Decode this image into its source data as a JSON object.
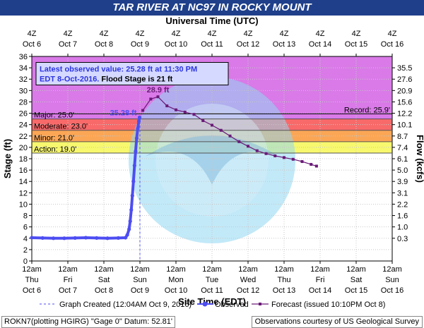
{
  "title": "TAR RIVER AT NC97 IN ROCKY MOUNT",
  "footer": {
    "left": "ROKN7(plotting HGIRG) \"Gage 0\" Datum: 52.81'",
    "right": "Observations courtesy of US Geological Survey"
  },
  "chart_data": {
    "type": "line",
    "title": "TAR RIVER AT NC97 IN ROCKY MOUNT",
    "top_axis_title": "Universal Time (UTC)",
    "bottom_axis_title": "Site Time (EDT)",
    "ylabel_left": "Stage (ft)",
    "ylabel_right": "Flow (kcfs)",
    "ylim": [
      0,
      36
    ],
    "xlim_days": [
      0,
      10
    ],
    "y_ticks": [
      0,
      2,
      4,
      6,
      8,
      10,
      12,
      14,
      16,
      18,
      20,
      22,
      24,
      26,
      28,
      30,
      32,
      34,
      36
    ],
    "right_ticks": [
      {
        "stage": 4,
        "label": "0.3"
      },
      {
        "stage": 6,
        "label": "1.0"
      },
      {
        "stage": 8,
        "label": "1.6"
      },
      {
        "stage": 10,
        "label": "2.2"
      },
      {
        "stage": 12,
        "label": "3.1"
      },
      {
        "stage": 14,
        "label": "3.9"
      },
      {
        "stage": 16,
        "label": "5.0"
      },
      {
        "stage": 18,
        "label": "6.1"
      },
      {
        "stage": 20,
        "label": "7.4"
      },
      {
        "stage": 22,
        "label": "8.7"
      },
      {
        "stage": 24,
        "label": "10.1"
      },
      {
        "stage": 26,
        "label": "12.2"
      },
      {
        "stage": 28,
        "label": "15.6"
      },
      {
        "stage": 30,
        "label": "20.9"
      },
      {
        "stage": 32,
        "label": "27.6"
      },
      {
        "stage": 34,
        "label": "35.5"
      }
    ],
    "top_ticks": [
      {
        "l1": "4Z",
        "l2": "Oct 6"
      },
      {
        "l1": "4Z",
        "l2": "Oct 7"
      },
      {
        "l1": "4Z",
        "l2": "Oct 8"
      },
      {
        "l1": "4Z",
        "l2": "Oct 9"
      },
      {
        "l1": "4Z",
        "l2": "Oct 10"
      },
      {
        "l1": "4Z",
        "l2": "Oct 11"
      },
      {
        "l1": "4Z",
        "l2": "Oct 12"
      },
      {
        "l1": "4Z",
        "l2": "Oct 13"
      },
      {
        "l1": "4Z",
        "l2": "Oct 14"
      },
      {
        "l1": "4Z",
        "l2": "Oct 15"
      },
      {
        "l1": "4Z",
        "l2": "Oct 16"
      }
    ],
    "bottom_ticks": [
      {
        "l1": "12am",
        "l2": "Thu",
        "l3": "Oct 6"
      },
      {
        "l1": "12am",
        "l2": "Fri",
        "l3": "Oct 7"
      },
      {
        "l1": "12am",
        "l2": "Sat",
        "l3": "Oct 8"
      },
      {
        "l1": "12am",
        "l2": "Sun",
        "l3": "Oct 9"
      },
      {
        "l1": "12am",
        "l2": "Mon",
        "l3": "Oct 10"
      },
      {
        "l1": "12am",
        "l2": "Tue",
        "l3": "Oct 11"
      },
      {
        "l1": "12am",
        "l2": "Wed",
        "l3": "Oct 12"
      },
      {
        "l1": "12am",
        "l2": "Thu",
        "l3": "Oct 13"
      },
      {
        "l1": "12am",
        "l2": "Fri",
        "l3": "Oct 14"
      },
      {
        "l1": "12am",
        "l2": "Sat",
        "l3": "Oct 15"
      },
      {
        "l1": "12am",
        "l2": "Sun",
        "l3": "Oct 16"
      }
    ],
    "bands": [
      {
        "name": "Major",
        "label": "Major: 25.0'",
        "from": 25.0,
        "to": 36,
        "color": "#d97ae8"
      },
      {
        "name": "Moderate",
        "label": "Moderate: 23.0'",
        "from": 23.0,
        "to": 25.0,
        "color": "#f86a6a"
      },
      {
        "name": "Minor",
        "label": "Minor: 21.0'",
        "from": 21.0,
        "to": 23.0,
        "color": "#fba655"
      },
      {
        "name": "Action",
        "label": "Action: 19.0'",
        "from": 19.0,
        "to": 21.0,
        "color": "#f8f86e"
      }
    ],
    "record": {
      "label": "Record: 25.9'",
      "stage": 25.9
    },
    "annotation": {
      "line1": "Latest observed value: 25.28 ft at 11:30 PM",
      "line2": "EDT 8-Oct-2016.",
      "line2b": "Flood Stage is 21 ft"
    },
    "observed_label": "25.28 ft",
    "forecast_peak_label": "28.9 ft",
    "graph_created_day": 3.0,
    "legend": {
      "created": "Graph Created (12:04AM Oct 9, 2016)",
      "observed": "Observed",
      "forecast": "Forecast (issued 10:10PM Oct 8)"
    },
    "series": [
      {
        "name": "Observed",
        "color": "#4d4df2",
        "points": [
          [
            0.0,
            4.1
          ],
          [
            0.3,
            4.05
          ],
          [
            0.6,
            4.0
          ],
          [
            0.9,
            4.0
          ],
          [
            1.2,
            4.05
          ],
          [
            1.5,
            4.1
          ],
          [
            1.8,
            4.05
          ],
          [
            2.1,
            4.0
          ],
          [
            2.4,
            4.05
          ],
          [
            2.6,
            4.1
          ],
          [
            2.65,
            4.6
          ],
          [
            2.7,
            5.6
          ],
          [
            2.73,
            7.0
          ],
          [
            2.76,
            9.0
          ],
          [
            2.79,
            11.5
          ],
          [
            2.82,
            14.0
          ],
          [
            2.85,
            16.8
          ],
          [
            2.88,
            19.3
          ],
          [
            2.91,
            21.6
          ],
          [
            2.94,
            23.3
          ],
          [
            2.97,
            24.6
          ],
          [
            2.99,
            25.28
          ]
        ]
      },
      {
        "name": "Forecast",
        "color": "#6a1a78",
        "points": [
          [
            3.08,
            26.5
          ],
          [
            3.3,
            28.5
          ],
          [
            3.5,
            28.9
          ],
          [
            3.75,
            27.3
          ],
          [
            4.0,
            26.6
          ],
          [
            4.25,
            26.2
          ],
          [
            4.5,
            25.8
          ],
          [
            4.75,
            24.7
          ],
          [
            5.0,
            23.9
          ],
          [
            5.25,
            23.0
          ],
          [
            5.5,
            22.0
          ],
          [
            5.75,
            21.0
          ],
          [
            6.0,
            20.2
          ],
          [
            6.25,
            19.4
          ],
          [
            6.5,
            18.9
          ],
          [
            6.75,
            18.5
          ],
          [
            7.0,
            18.2
          ],
          [
            7.25,
            17.9
          ],
          [
            7.5,
            17.5
          ],
          [
            7.75,
            17.0
          ],
          [
            7.9,
            16.7
          ]
        ]
      }
    ]
  }
}
